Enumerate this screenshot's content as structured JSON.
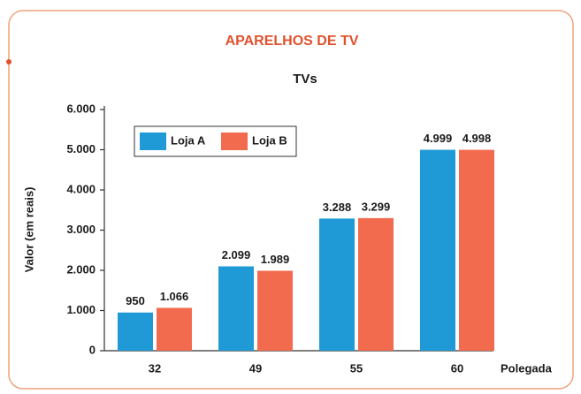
{
  "chart_data": {
    "type": "bar",
    "title": "APARELHOS DE TV",
    "subtitle": "TVs",
    "y_label": "Valor (em reais)",
    "x_label": "Polegada",
    "categories": [
      "32",
      "49",
      "55",
      "60"
    ],
    "series": [
      {
        "name": "Loja A",
        "color": "#1f9ad6",
        "values": [
          950,
          2099,
          3288,
          4999
        ],
        "value_labels": [
          "950",
          "2.099",
          "3.288",
          "4.999"
        ]
      },
      {
        "name": "Loja B",
        "color": "#f26b4f",
        "values": [
          1066,
          1989,
          3299,
          4998
        ],
        "value_labels": [
          "1.066",
          "1.989",
          "3.299",
          "4.998"
        ]
      }
    ],
    "ylim": [
      0,
      6000
    ],
    "yticks": [
      0,
      {
        "value": 1000,
        "label": "1.000"
      },
      {
        "value": 2000,
        "label": "2.000"
      },
      {
        "value": 3000,
        "label": "3.000"
      },
      {
        "value": 4000,
        "label": "4.000"
      },
      {
        "value": 5000,
        "label": "5.000"
      },
      {
        "value": 6000,
        "label": "6.000"
      }
    ],
    "legend": "upper left",
    "grid": false
  }
}
